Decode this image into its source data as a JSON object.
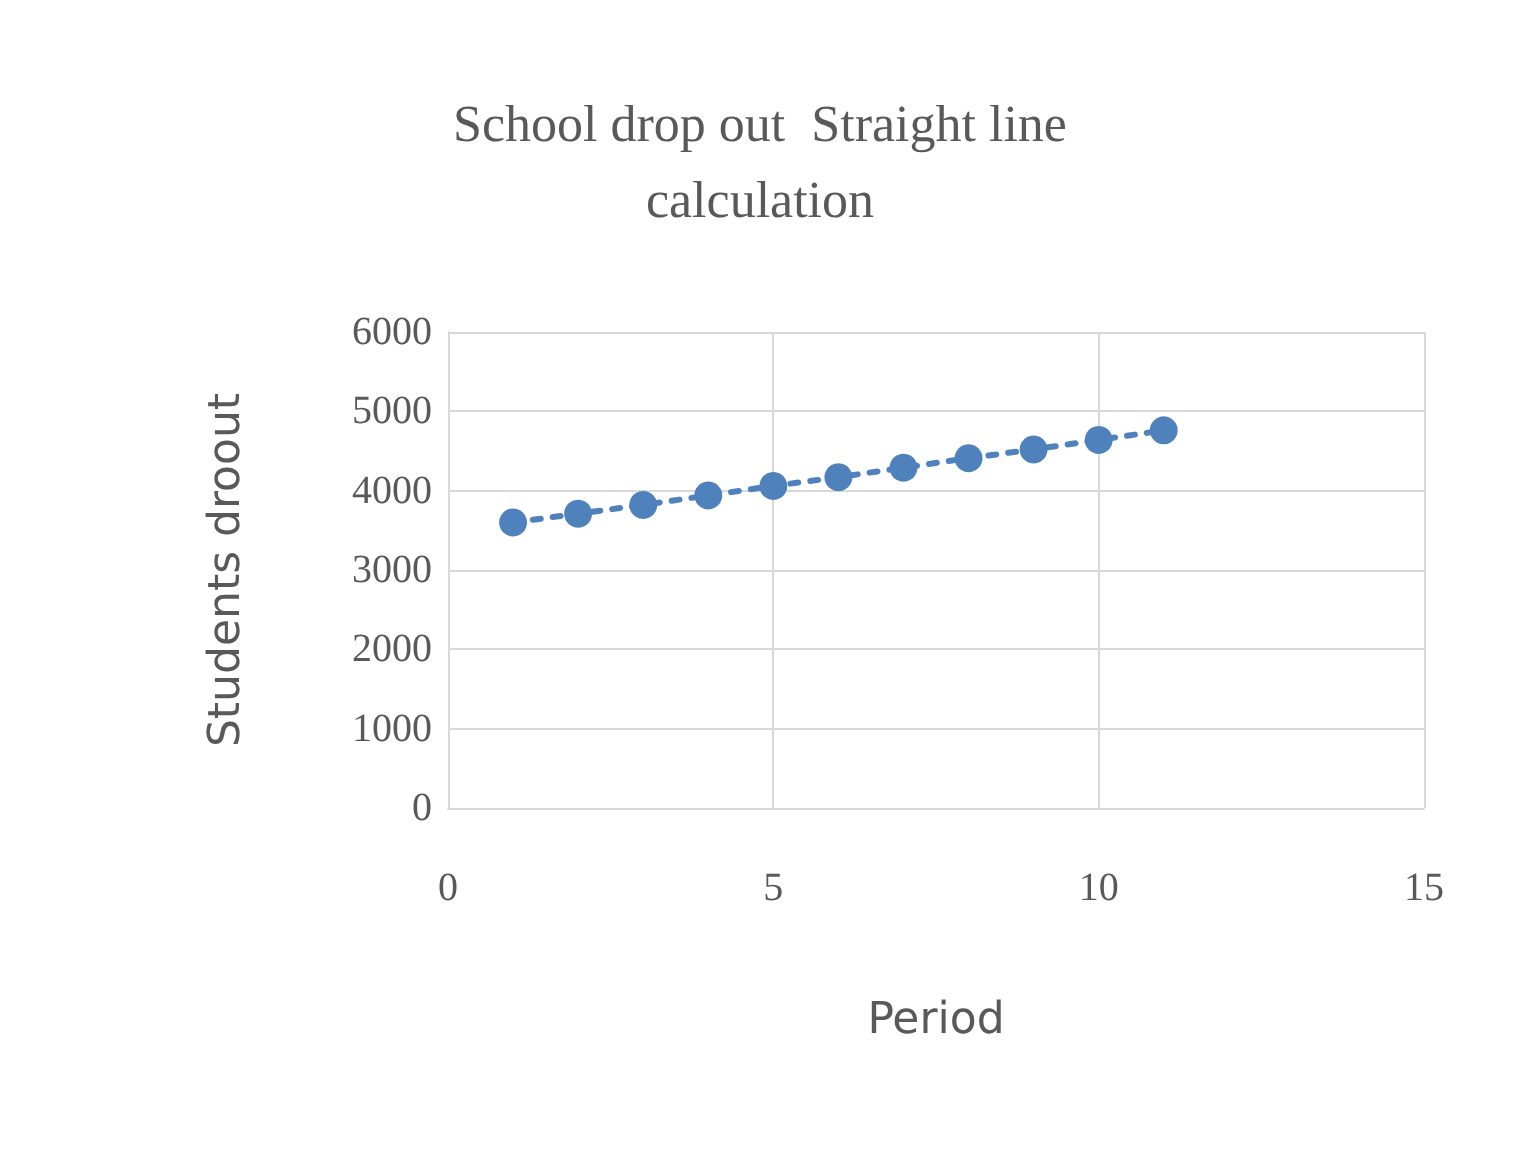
{
  "chart_data": {
    "type": "line",
    "title": "School drop out  Straight line\ncalculation",
    "xlabel": "Period",
    "ylabel": "Students droout",
    "x": [
      1,
      2,
      3,
      4,
      5,
      6,
      7,
      8,
      9,
      10,
      11
    ],
    "series": [
      {
        "color": "#4f81bd",
        "values": [
          3600,
          3710,
          3820,
          3940,
          4060,
          4170,
          4290,
          4410,
          4520,
          4640,
          4760
        ]
      }
    ],
    "xlim": [
      0,
      15
    ],
    "xticks": [
      0,
      5,
      10,
      15
    ],
    "ylim": [
      0,
      6000
    ],
    "yticks": [
      0,
      1000,
      2000,
      3000,
      4000,
      5000,
      6000
    ],
    "grid": true,
    "marker": "circle",
    "line_style": "dashed"
  }
}
